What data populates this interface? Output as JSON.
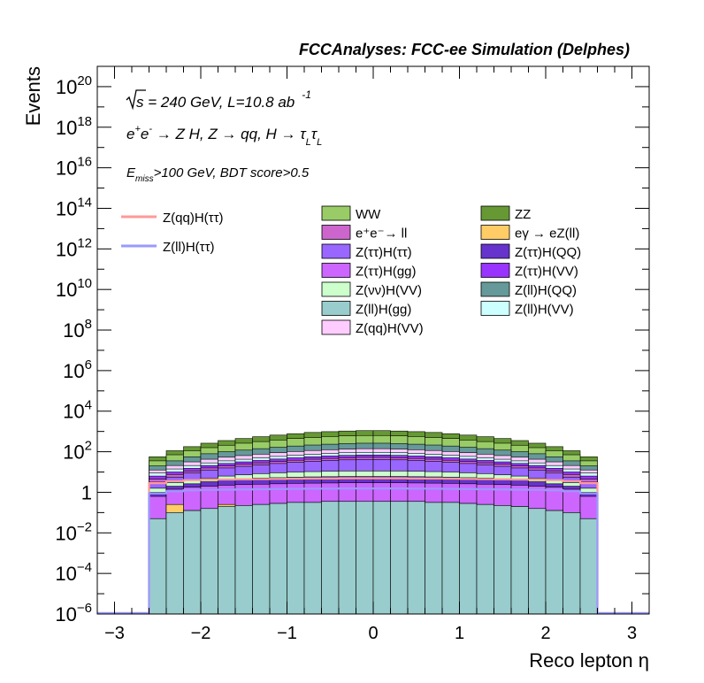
{
  "header_title": "FCCAnalyses: FCC-ee Simulation (Delphes)",
  "info": {
    "sqrt_s": "s",
    "lumi_prefix": " = 240 GeV, L=10.8 ab",
    "lumi_exp": "-1",
    "process": {
      "ee": "e",
      "plus": "+",
      "e2": "e",
      "minus": "-",
      "arrow1": " → Z H, Z  → qq, H  → τ",
      "sub1": "L",
      "tau2": "τ",
      "sub2": "L"
    },
    "cut_E": "E",
    "cut_sub": "miss",
    "cut_rest": ">100 GeV, BDT score>0.5"
  },
  "chart_data": {
    "type": "histogram-stacked-log",
    "xlabel": "Reco lepton η",
    "ylabel": "Events",
    "xlim": [
      -3.2,
      3.2
    ],
    "ylim_log10": [
      -6,
      21
    ],
    "y_scale": "log",
    "x_ticks": [
      "−3",
      "−2",
      "−1",
      "0",
      "1",
      "2",
      "3"
    ],
    "x_tick_values": [
      -3,
      -2,
      -1,
      0,
      1,
      2,
      3
    ],
    "y_ticks": [
      {
        "base": "10",
        "exp": "−6",
        "log": -6
      },
      {
        "base": "10",
        "exp": "−4",
        "log": -4
      },
      {
        "base": "10",
        "exp": "−2",
        "log": -2
      },
      {
        "base": "1",
        "exp": "",
        "log": 0
      },
      {
        "base": "10",
        "exp": "2",
        "log": 2
      },
      {
        "base": "10",
        "exp": "4",
        "log": 4
      },
      {
        "base": "10",
        "exp": "6",
        "log": 6
      },
      {
        "base": "10",
        "exp": "8",
        "log": 8
      },
      {
        "base": "10",
        "exp": "10",
        "log": 10
      },
      {
        "base": "10",
        "exp": "12",
        "log": 12
      },
      {
        "base": "10",
        "exp": "14",
        "log": 14
      },
      {
        "base": "10",
        "exp": "16",
        "log": 16
      },
      {
        "base": "10",
        "exp": "18",
        "log": 18
      },
      {
        "base": "10",
        "exp": "20",
        "log": 20
      }
    ],
    "bin_edges": [
      -2.6,
      -2.4,
      -2.2,
      -2.0,
      -1.8,
      -1.6,
      -1.4,
      -1.2,
      -1.0,
      -0.8,
      -0.6,
      -0.4,
      -0.2,
      0.0,
      0.2,
      0.4,
      0.6,
      0.8,
      1.0,
      1.2,
      1.4,
      1.6,
      1.8,
      2.0,
      2.2,
      2.4,
      2.6
    ],
    "background_order_bottom_to_top": [
      "Z(ll)H(gg)",
      "eγ → eZ(ll)",
      "Z(ττ)H(gg)",
      "Z(ττ)H(QQ)",
      "Z(νν)H(VV)",
      "Z(ττ)H(ττ)",
      "e+e- → ll",
      "Z(ττ)H(VV)",
      "Z(ll)H(VV)",
      "Z(qq)H(VV)",
      "Z(ll)H(QQ)",
      "WW",
      "ZZ"
    ],
    "background_fill_color": [
      "#99CCCC",
      "#FFCC66",
      "#CC66FF",
      "#6633CC",
      "#CCFFCC",
      "#9966FF",
      "#CC66CC",
      "#9933FF",
      "#CCFFFF",
      "#FFCCFF",
      "#669999",
      "#99CC66",
      "#669933"
    ],
    "stack_boundaries_log10": [
      [
        -1.3,
        -1.0,
        -0.9,
        -0.8,
        -0.7,
        -0.65,
        -0.6,
        -0.55,
        -0.5,
        -0.5,
        -0.45,
        -0.45,
        -0.45,
        -0.45,
        -0.45,
        -0.45,
        -0.5,
        -0.5,
        -0.55,
        -0.6,
        -0.65,
        -0.7,
        -0.8,
        -0.9,
        -1.0,
        -1.3
      ],
      [
        -1.3,
        -0.6,
        -0.9,
        -0.8,
        -0.6,
        -0.65,
        -0.6,
        -0.55,
        -0.5,
        -0.5,
        -0.45,
        -0.45,
        -0.6,
        -0.45,
        -0.45,
        -0.45,
        -0.5,
        -0.5,
        -0.55,
        -0.6,
        -0.65,
        -0.7,
        -0.8,
        -0.9,
        -1.0,
        -1.3
      ],
      [
        -0.2,
        0.15,
        0.25,
        0.3,
        0.35,
        0.38,
        0.4,
        0.42,
        0.44,
        0.45,
        0.46,
        0.47,
        0.47,
        0.47,
        0.47,
        0.46,
        0.45,
        0.44,
        0.42,
        0.4,
        0.38,
        0.35,
        0.3,
        0.25,
        0.15,
        -0.2
      ],
      [
        0.0,
        0.3,
        0.42,
        0.52,
        0.6,
        0.65,
        0.7,
        0.72,
        0.74,
        0.76,
        0.77,
        0.78,
        0.78,
        0.78,
        0.78,
        0.77,
        0.76,
        0.74,
        0.72,
        0.7,
        0.65,
        0.6,
        0.52,
        0.42,
        0.3,
        0.0
      ],
      [
        0.2,
        0.48,
        0.6,
        0.7,
        0.8,
        0.86,
        0.92,
        0.96,
        1.0,
        1.02,
        1.04,
        1.05,
        1.05,
        1.05,
        1.05,
        1.04,
        1.02,
        1.0,
        0.96,
        0.92,
        0.86,
        0.8,
        0.7,
        0.6,
        0.48,
        0.2
      ],
      [
        0.5,
        0.75,
        0.95,
        1.1,
        1.2,
        1.28,
        1.35,
        1.42,
        1.48,
        1.53,
        1.57,
        1.6,
        1.62,
        1.62,
        1.6,
        1.57,
        1.53,
        1.48,
        1.42,
        1.35,
        1.28,
        1.2,
        1.1,
        0.95,
        0.75,
        0.5
      ],
      [
        0.65,
        0.88,
        1.05,
        1.2,
        1.3,
        1.38,
        1.45,
        1.52,
        1.58,
        1.63,
        1.67,
        1.7,
        1.72,
        1.72,
        1.7,
        1.67,
        1.63,
        1.58,
        1.52,
        1.45,
        1.38,
        1.3,
        1.2,
        1.05,
        0.88,
        0.65
      ],
      [
        0.8,
        1.0,
        1.18,
        1.32,
        1.42,
        1.5,
        1.57,
        1.64,
        1.7,
        1.75,
        1.79,
        1.82,
        1.84,
        1.84,
        1.82,
        1.79,
        1.75,
        1.7,
        1.64,
        1.57,
        1.5,
        1.42,
        1.32,
        1.18,
        1.0,
        0.8
      ],
      [
        0.95,
        1.15,
        1.32,
        1.45,
        1.55,
        1.63,
        1.7,
        1.77,
        1.83,
        1.88,
        1.92,
        1.95,
        1.97,
        1.97,
        1.95,
        1.92,
        1.88,
        1.83,
        1.77,
        1.7,
        1.63,
        1.55,
        1.45,
        1.32,
        1.15,
        0.95
      ],
      [
        1.1,
        1.32,
        1.5,
        1.63,
        1.73,
        1.81,
        1.88,
        1.95,
        2.01,
        2.06,
        2.1,
        2.13,
        2.15,
        2.15,
        2.13,
        2.1,
        2.06,
        2.01,
        1.95,
        1.88,
        1.81,
        1.73,
        1.63,
        1.5,
        1.32,
        1.1
      ],
      [
        1.3,
        1.55,
        1.75,
        1.9,
        2.0,
        2.08,
        2.15,
        2.22,
        2.28,
        2.33,
        2.37,
        2.4,
        2.42,
        2.42,
        2.4,
        2.37,
        2.33,
        2.28,
        2.22,
        2.15,
        2.08,
        2.0,
        1.9,
        1.75,
        1.55,
        1.3
      ],
      [
        1.55,
        1.85,
        2.05,
        2.2,
        2.32,
        2.42,
        2.5,
        2.58,
        2.65,
        2.7,
        2.75,
        2.78,
        2.8,
        2.8,
        2.78,
        2.75,
        2.7,
        2.65,
        2.58,
        2.5,
        2.42,
        2.32,
        2.2,
        2.05,
        1.85,
        1.55
      ],
      [
        1.75,
        2.05,
        2.25,
        2.42,
        2.55,
        2.65,
        2.74,
        2.82,
        2.89,
        2.95,
        2.99,
        3.02,
        3.04,
        3.04,
        3.02,
        2.99,
        2.95,
        2.89,
        2.82,
        2.74,
        2.65,
        2.55,
        2.42,
        2.25,
        2.05,
        1.75
      ]
    ],
    "signals": [
      {
        "name": "Z(qq)H(ττ)",
        "color": "#FF9999",
        "log10_values": [
          0.45,
          0.55,
          0.6,
          0.62,
          0.63,
          0.64,
          0.65,
          0.66,
          0.67,
          0.68,
          0.68,
          0.69,
          0.69,
          0.69,
          0.69,
          0.68,
          0.68,
          0.67,
          0.66,
          0.65,
          0.64,
          0.63,
          0.62,
          0.6,
          0.55,
          0.45
        ]
      },
      {
        "name": "Z(ll)H(ττ)",
        "color": "#9999FF",
        "log10_values": [
          -0.05,
          0.05,
          0.1,
          0.12,
          0.13,
          0.14,
          0.15,
          0.16,
          0.17,
          0.18,
          0.18,
          0.19,
          0.19,
          0.19,
          0.19,
          0.18,
          0.18,
          0.17,
          0.16,
          0.15,
          0.14,
          0.13,
          0.12,
          0.1,
          0.05,
          -0.05
        ]
      }
    ],
    "legend_signals": [
      {
        "name": "Z(qq)H(ττ)",
        "color": "#FF9999"
      },
      {
        "name": "Z(ll)H(ττ)",
        "color": "#9999FF"
      }
    ],
    "legend_backgrounds": [
      {
        "name": "WW",
        "color": "#99CC66"
      },
      {
        "name": "ZZ",
        "color": "#669933"
      },
      {
        "name": "e⁺e⁻→ ll",
        "color": "#CC66CC"
      },
      {
        "name": "eγ → eZ(ll)",
        "color": "#FFCC66"
      },
      {
        "name": "Z(ττ)H(ττ)",
        "color": "#9966FF"
      },
      {
        "name": "Z(ττ)H(QQ)",
        "color": "#6633CC"
      },
      {
        "name": "Z(ττ)H(gg)",
        "color": "#CC66FF"
      },
      {
        "name": "Z(ττ)H(VV)",
        "color": "#9933FF"
      },
      {
        "name": "Z(νν)H(VV)",
        "color": "#CCFFCC"
      },
      {
        "name": "Z(ll)H(QQ)",
        "color": "#669999"
      },
      {
        "name": "Z(ll)H(gg)",
        "color": "#99CCCC"
      },
      {
        "name": "Z(ll)H(VV)",
        "color": "#CCFFFF"
      },
      {
        "name": "Z(qq)H(VV)",
        "color": "#FFCCFF"
      }
    ]
  }
}
